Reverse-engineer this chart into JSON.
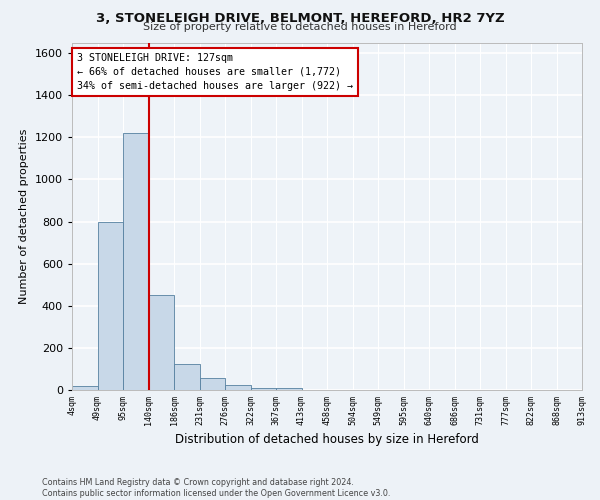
{
  "title1": "3, STONELEIGH DRIVE, BELMONT, HEREFORD, HR2 7YZ",
  "title2": "Size of property relative to detached houses in Hereford",
  "xlabel": "Distribution of detached houses by size in Hereford",
  "ylabel": "Number of detached properties",
  "bar_values": [
    20,
    800,
    1220,
    450,
    125,
    55,
    22,
    10,
    10,
    0,
    0,
    0,
    0,
    0,
    0,
    0,
    0,
    0,
    0,
    0
  ],
  "bar_labels": [
    "4sqm",
    "49sqm",
    "95sqm",
    "140sqm",
    "186sqm",
    "231sqm",
    "276sqm",
    "322sqm",
    "367sqm",
    "413sqm",
    "458sqm",
    "504sqm",
    "549sqm",
    "595sqm",
    "640sqm",
    "686sqm",
    "731sqm",
    "777sqm",
    "822sqm",
    "868sqm",
    "913sqm"
  ],
  "bar_color": "#c8d8e8",
  "bar_edge_color": "#5580a0",
  "vline_color": "#cc0000",
  "ylim": [
    0,
    1650
  ],
  "annotation_text": "3 STONELEIGH DRIVE: 127sqm\n← 66% of detached houses are smaller (1,772)\n34% of semi-detached houses are larger (922) →",
  "annotation_box_color": "white",
  "annotation_box_edge": "#cc0000",
  "footer": "Contains HM Land Registry data © Crown copyright and database right 2024.\nContains public sector information licensed under the Open Government Licence v3.0.",
  "bg_color": "#edf2f7",
  "plot_bg_color": "#eef3f8",
  "grid_color": "#ffffff",
  "n_bins": 20,
  "vline_bin": 2.5
}
